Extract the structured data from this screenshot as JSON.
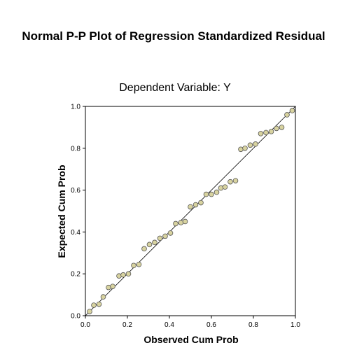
{
  "chart_data": {
    "type": "scatter",
    "title": "Normal P-P Plot of Regression Standardized Residual",
    "subtitle": "Dependent Variable: Y",
    "xlabel": "Observed Cum Prob",
    "ylabel": "Expected Cum Prob",
    "xlim": [
      0,
      1
    ],
    "ylim": [
      0,
      1
    ],
    "x_ticks": [
      "0.0",
      "0.2",
      "0.4",
      "0.6",
      "0.8",
      "1.0"
    ],
    "y_ticks": [
      "0.0",
      "0.2",
      "0.4",
      "0.6",
      "0.8",
      "1.0"
    ],
    "grid": false,
    "reference_line": [
      [
        0,
        0
      ],
      [
        1,
        1
      ]
    ],
    "marker_color": "#d8d3a0",
    "marker_edge": "#555555",
    "points": [
      [
        0.02,
        0.02
      ],
      [
        0.04,
        0.05
      ],
      [
        0.065,
        0.055
      ],
      [
        0.085,
        0.09
      ],
      [
        0.11,
        0.135
      ],
      [
        0.13,
        0.14
      ],
      [
        0.16,
        0.19
      ],
      [
        0.18,
        0.195
      ],
      [
        0.205,
        0.2
      ],
      [
        0.23,
        0.24
      ],
      [
        0.255,
        0.245
      ],
      [
        0.28,
        0.32
      ],
      [
        0.305,
        0.34
      ],
      [
        0.33,
        0.35
      ],
      [
        0.355,
        0.37
      ],
      [
        0.38,
        0.38
      ],
      [
        0.405,
        0.395
      ],
      [
        0.43,
        0.44
      ],
      [
        0.455,
        0.445
      ],
      [
        0.475,
        0.45
      ],
      [
        0.5,
        0.52
      ],
      [
        0.525,
        0.53
      ],
      [
        0.55,
        0.54
      ],
      [
        0.575,
        0.58
      ],
      [
        0.6,
        0.58
      ],
      [
        0.625,
        0.59
      ],
      [
        0.645,
        0.61
      ],
      [
        0.665,
        0.615
      ],
      [
        0.69,
        0.64
      ],
      [
        0.715,
        0.645
      ],
      [
        0.74,
        0.795
      ],
      [
        0.76,
        0.8
      ],
      [
        0.785,
        0.815
      ],
      [
        0.81,
        0.82
      ],
      [
        0.835,
        0.87
      ],
      [
        0.86,
        0.875
      ],
      [
        0.885,
        0.88
      ],
      [
        0.91,
        0.895
      ],
      [
        0.935,
        0.9
      ],
      [
        0.96,
        0.96
      ],
      [
        0.985,
        0.98
      ]
    ]
  }
}
